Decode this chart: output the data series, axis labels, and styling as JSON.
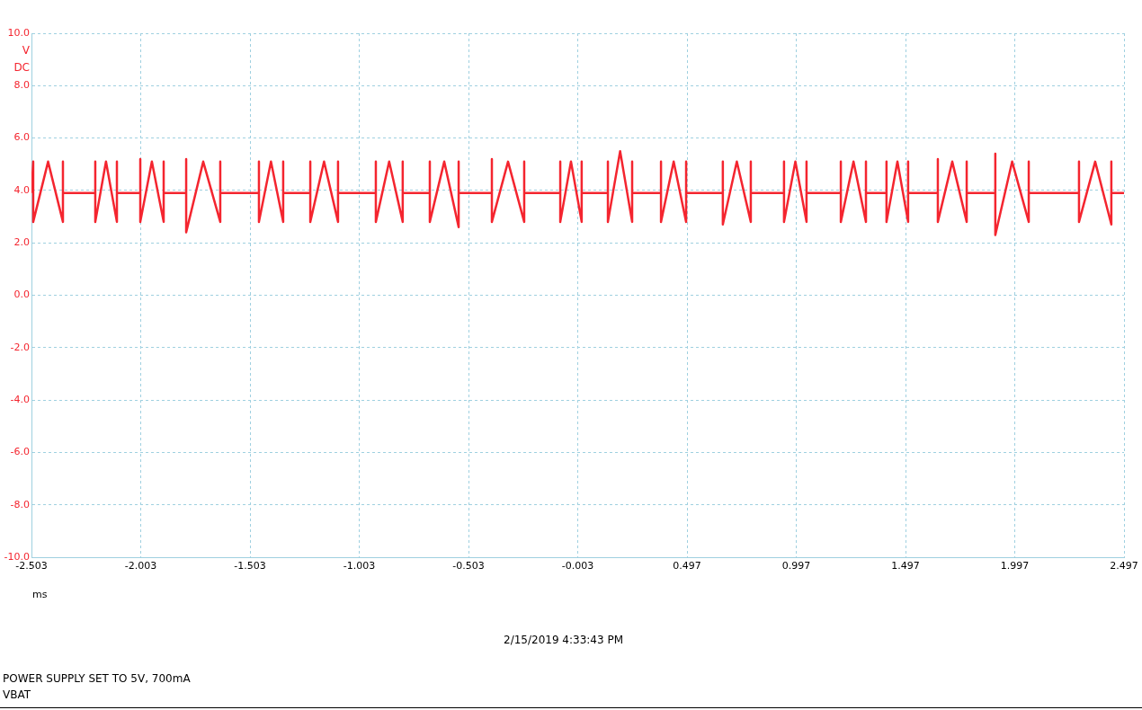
{
  "chart_data": {
    "type": "line",
    "ylabel": "V DC",
    "xlabel": "ms",
    "annotations": [
      "2/15/2019 4:33:43 PM",
      "POWER SUPPLY SET TO 5V, 700mA",
      "VBAT"
    ],
    "xlim": [
      -2.503,
      2.497
    ],
    "xticks": [
      -2.503,
      -2.003,
      -1.503,
      -1.003,
      -0.503,
      -0.003,
      0.497,
      0.997,
      1.497,
      1.997,
      2.497
    ],
    "ylim": [
      -10,
      10
    ],
    "yticks": [
      {
        "value": -10,
        "label": "-10.0"
      },
      {
        "value": -8,
        "label": "-8.0"
      },
      {
        "value": -6,
        "label": "-6.0"
      },
      {
        "value": -4,
        "label": "-4.0"
      },
      {
        "value": -2,
        "label": "-2.0"
      },
      {
        "value": 0,
        "label": "0.0"
      },
      {
        "value": 2,
        "label": "2.0"
      },
      {
        "value": 4,
        "label": "4.0"
      },
      {
        "value": 6,
        "label": "6.0"
      },
      {
        "value": 8,
        "label": "8.0"
      },
      {
        "value": 10,
        "label": "10.0"
      }
    ],
    "grid": true,
    "legend": false,
    "marker": "none",
    "line_style": "solid",
    "series": [
      {
        "color": "#f4252f",
        "x": [
          -2.503,
          -2.495,
          -2.495,
          -2.427,
          -2.359,
          -2.359,
          -2.359,
          -2.211,
          -2.211,
          -2.211,
          -2.162,
          -2.112,
          -2.112,
          -2.112,
          -2.005,
          -2.005,
          -2.005,
          -1.952,
          -1.898,
          -1.898,
          -1.898,
          -1.795,
          -1.795,
          -1.795,
          -1.717,
          -1.639,
          -1.639,
          -1.639,
          -1.462,
          -1.462,
          -1.462,
          -1.407,
          -1.351,
          -1.351,
          -1.351,
          -1.227,
          -1.227,
          -1.227,
          -1.164,
          -1.1,
          -1.1,
          -1.1,
          -0.927,
          -0.927,
          -0.927,
          -0.866,
          -0.804,
          -0.804,
          -0.804,
          -0.68,
          -0.68,
          -0.68,
          -0.614,
          -0.548,
          -0.548,
          -0.548,
          -0.396,
          -0.396,
          -0.396,
          -0.322,
          -0.248,
          -0.248,
          -0.248,
          -0.083,
          -0.083,
          -0.083,
          -0.034,
          0.015,
          0.015,
          0.015,
          0.135,
          0.135,
          0.135,
          0.191,
          0.246,
          0.246,
          0.246,
          0.378,
          0.378,
          0.378,
          0.436,
          0.493,
          0.493,
          0.493,
          0.661,
          0.661,
          0.661,
          0.725,
          0.789,
          0.789,
          0.789,
          0.941,
          0.941,
          0.941,
          0.993,
          1.044,
          1.044,
          1.044,
          1.201,
          1.201,
          1.201,
          1.259,
          1.316,
          1.316,
          1.316,
          1.41,
          1.41,
          1.41,
          1.46,
          1.509,
          1.509,
          1.509,
          1.645,
          1.645,
          1.645,
          1.711,
          1.777,
          1.777,
          1.777,
          1.908,
          1.908,
          1.908,
          1.985,
          2.061,
          2.061,
          2.061,
          2.291,
          2.291,
          2.291,
          2.365,
          2.439,
          2.439,
          2.439,
          2.497
        ],
        "values": [
          3.9,
          5.1,
          2.8,
          5.1,
          2.8,
          5.1,
          3.9,
          3.9,
          5.1,
          2.8,
          5.1,
          2.8,
          5.1,
          3.9,
          3.9,
          5.2,
          2.8,
          5.1,
          2.8,
          5.1,
          3.9,
          3.9,
          5.2,
          2.4,
          5.1,
          2.8,
          5.1,
          3.9,
          3.9,
          5.1,
          2.8,
          5.1,
          2.8,
          5.1,
          3.9,
          3.9,
          5.1,
          2.8,
          5.1,
          2.8,
          5.1,
          3.9,
          3.9,
          5.1,
          2.8,
          5.1,
          2.8,
          5.1,
          3.9,
          3.9,
          5.1,
          2.8,
          5.1,
          2.6,
          5.1,
          3.9,
          3.9,
          5.2,
          2.8,
          5.1,
          2.8,
          5.1,
          3.9,
          3.9,
          5.1,
          2.8,
          5.1,
          2.8,
          5.1,
          3.9,
          3.9,
          5.1,
          2.8,
          5.5,
          2.8,
          5.1,
          3.9,
          3.9,
          5.1,
          2.8,
          5.1,
          2.8,
          5.1,
          3.9,
          3.9,
          5.1,
          2.7,
          5.1,
          2.8,
          5.1,
          3.9,
          3.9,
          5.1,
          2.8,
          5.1,
          2.8,
          5.1,
          3.9,
          3.9,
          5.1,
          2.8,
          5.1,
          2.8,
          5.1,
          3.9,
          3.9,
          5.1,
          2.8,
          5.1,
          2.8,
          5.1,
          3.9,
          3.9,
          5.2,
          2.8,
          5.1,
          2.8,
          5.1,
          3.9,
          3.9,
          5.4,
          2.3,
          5.1,
          2.8,
          5.1,
          3.9,
          3.9,
          5.1,
          2.8,
          5.1,
          2.7,
          5.1,
          3.9,
          3.9
        ]
      }
    ]
  }
}
